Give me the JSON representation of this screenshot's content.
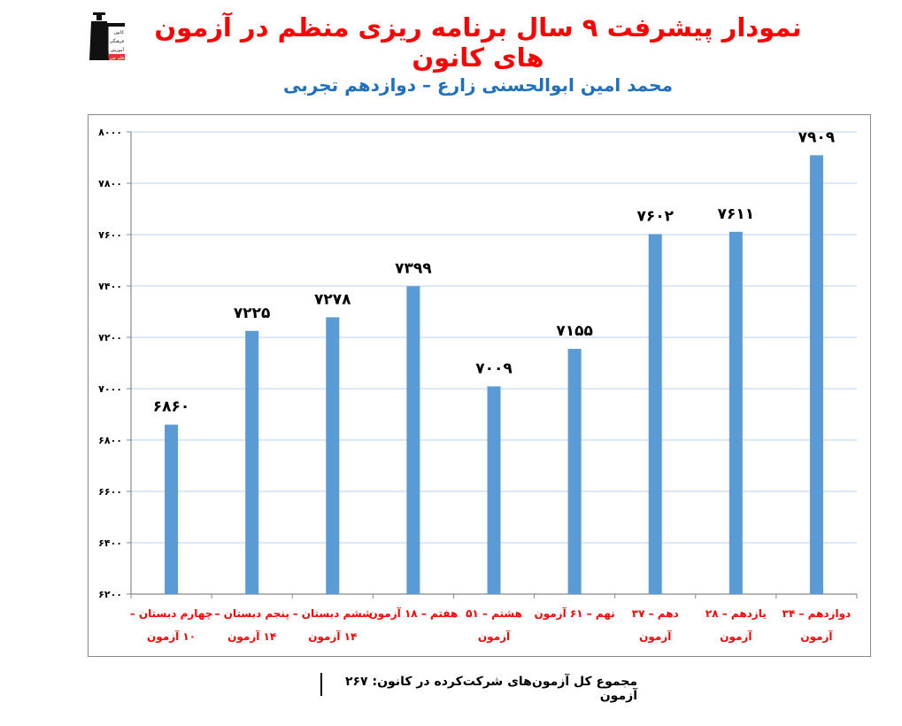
{
  "header": {
    "title": "نمودار پیشرفت ۹ سال برنامه ریزی منظم در آزمون های کانون",
    "subtitle": "محمد امین ابوالحسنی زارع – دوازدهم تجربی",
    "logo_icon": "kanoon-logo-icon",
    "logo_text": [
      "کانون",
      "فرهنگی",
      "آموزش",
      "قلم چی"
    ]
  },
  "footer": {
    "summary": "مجموع کل آزمون‌های شرکت‌کرده در کانون:  ۲۶۷ آزمون"
  },
  "colors": {
    "title": "#ff0000",
    "subtitle": "#1f6fc0",
    "bar": "#5b9bd5",
    "gridline": "#c5d9f1",
    "axis": "#888888",
    "category_label": "#ff0000",
    "data_label": "#000000"
  },
  "chart_data": {
    "type": "bar",
    "title": "نمودار پیشرفت ۹ سال برنامه ریزی منظم در آزمون های کانون",
    "subtitle": "محمد امین ابوالحسنی زارع – دوازدهم تجربی",
    "xlabel": "",
    "ylabel": "",
    "ylim": [
      6200,
      8000
    ],
    "yticks": [
      6200,
      6400,
      6600,
      6800,
      7000,
      7200,
      7400,
      7600,
      7800,
      8000
    ],
    "ytick_labels": [
      "۶۲۰۰",
      "۶۴۰۰",
      "۶۶۰۰",
      "۶۸۰۰",
      "۷۰۰۰",
      "۷۲۰۰",
      "۷۴۰۰",
      "۷۶۰۰",
      "۷۸۰۰",
      "۸۰۰۰"
    ],
    "grid": true,
    "legend": null,
    "categories": [
      [
        "چهارم دبستان –",
        "۱۰ آزمون"
      ],
      [
        "پنجم دبستان –",
        "۱۴ آزمون"
      ],
      [
        "ششم دبستان –",
        "۱۴ آزمون"
      ],
      [
        "هفتم – ۱۸ آزمون",
        ""
      ],
      [
        "هشتم – ۵۱",
        "آزمون"
      ],
      [
        "نهم – ۶۱ آزمون",
        ""
      ],
      [
        "دهم – ۳۷",
        "آزمون"
      ],
      [
        "یازدهم – ۲۸",
        "آزمون"
      ],
      [
        "دوازدهم – ۳۴",
        "آزمون"
      ]
    ],
    "values": [
      6860,
      7225,
      7278,
      7399,
      7009,
      7155,
      7602,
      7611,
      7909
    ],
    "value_labels": [
      "۶۸۶۰",
      "۷۲۲۵",
      "۷۲۷۸",
      "۷۳۹۹",
      "۷۰۰۹",
      "۷۱۵۵",
      "۷۶۰۲",
      "۷۶۱۱",
      "۷۹۰۹"
    ]
  }
}
